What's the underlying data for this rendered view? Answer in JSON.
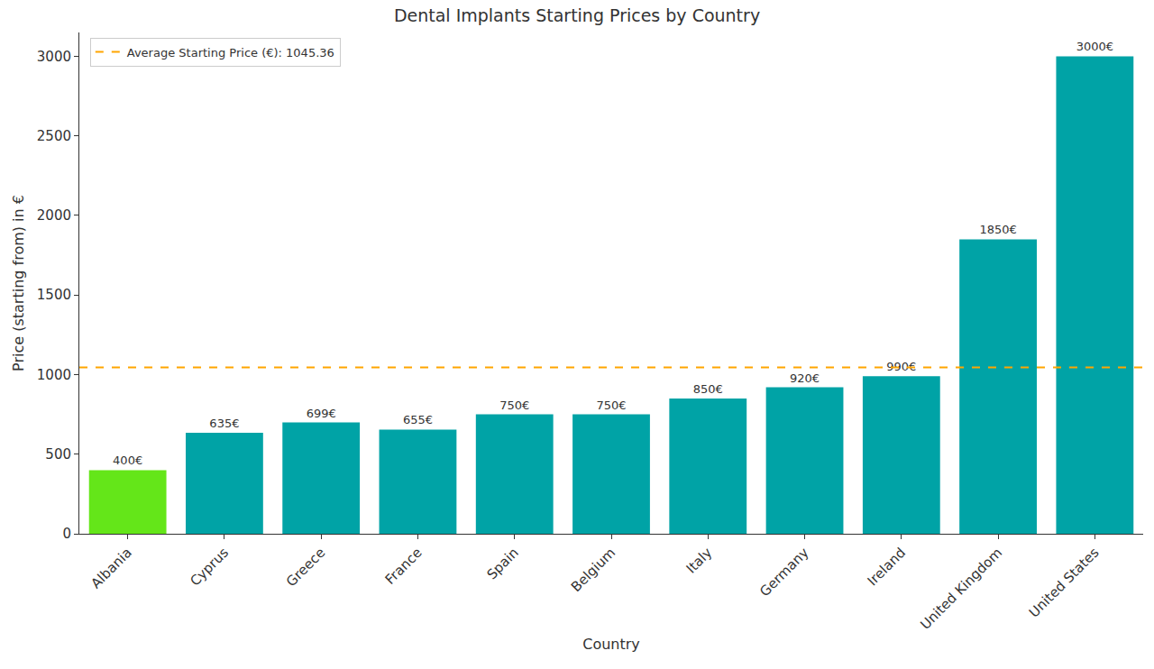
{
  "chart_data": {
    "type": "bar",
    "title": "Dental Implants Starting Prices by Country",
    "x_label": "Country",
    "y_label": "Price (starting from) in €",
    "categories": [
      "Albania",
      "Cyprus",
      "Greece",
      "France",
      "Spain",
      "Belgium",
      "Italy",
      "Germany",
      "Ireland",
      "United Kingdom",
      "United States"
    ],
    "values": [
      400,
      635,
      699,
      655,
      750,
      750,
      850,
      920,
      990,
      1850,
      3000
    ],
    "value_labels": [
      "400€",
      "635€",
      "699€",
      "655€",
      "750€",
      "750€",
      "850€",
      "920€",
      "990€",
      "1850€",
      "3000€"
    ],
    "colors": [
      "#64e619",
      "#00a3a6",
      "#00a3a6",
      "#00a3a6",
      "#00a3a6",
      "#00a3a6",
      "#00a3a6",
      "#00a3a6",
      "#00a3a6",
      "#00a3a6",
      "#00a3a6"
    ],
    "data_labels": true,
    "average": {
      "name": "Average Starting Price (€): 1045.36",
      "value": 1045.36,
      "color": "#ffa500",
      "line_style": "dashed"
    },
    "ylim": [
      0,
      3150
    ],
    "yticks": [
      0,
      500,
      1000,
      1500,
      2000,
      2500,
      3000
    ],
    "grid": false,
    "legend": "upper left"
  }
}
